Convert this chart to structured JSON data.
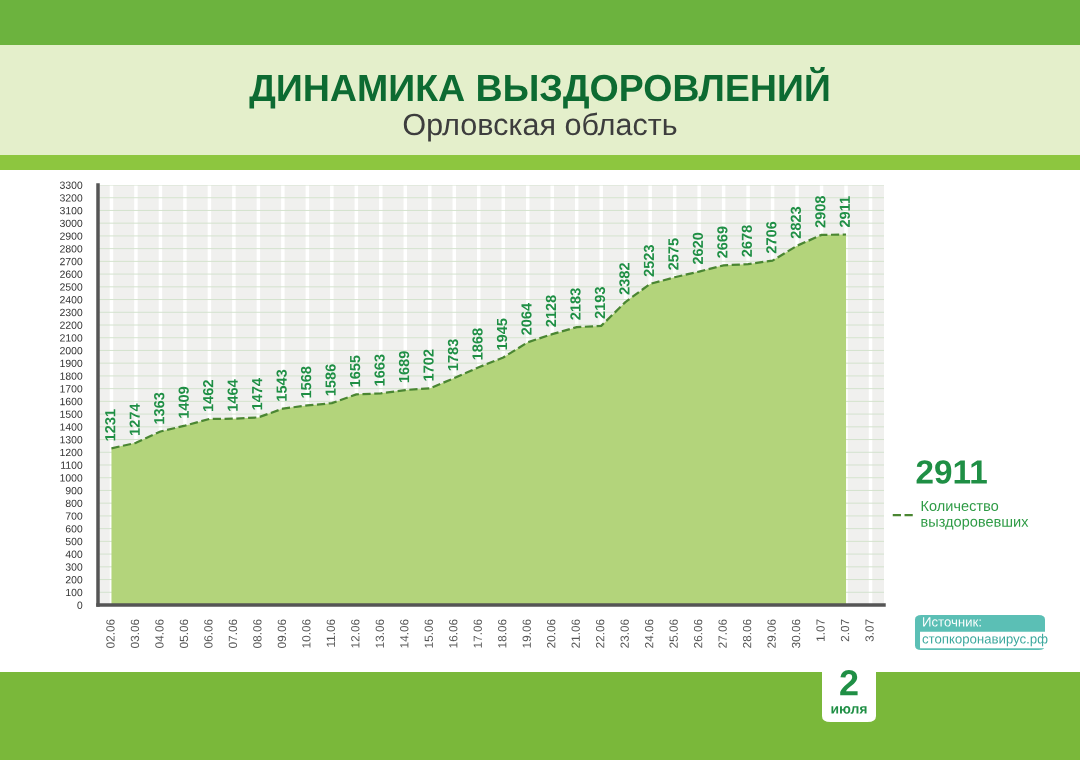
{
  "chart_data": {
    "type": "area",
    "title": "ДИНАМИКА ВЫЗДОРОВЛЕНИЙ",
    "subtitle": "Орловская область",
    "categories": [
      "02.06",
      "03.06",
      "04.06",
      "05.06",
      "06.06",
      "07.06",
      "08.06",
      "09.06",
      "10.06",
      "11.06",
      "12.06",
      "13.06",
      "14.06",
      "15.06",
      "16.06",
      "17.06",
      "18.06",
      "19.06",
      "20.06",
      "21.06",
      "22.06",
      "23.06",
      "24.06",
      "25.06",
      "26.06",
      "27.06",
      "28.06",
      "29.06",
      "30.06",
      "1.07",
      "2.07",
      "3.07"
    ],
    "series": [
      {
        "name": "Количество выздоровевших",
        "color": "#b3d47b",
        "values": [
          1231,
          1274,
          1363,
          1409,
          1462,
          1464,
          1474,
          1543,
          1568,
          1586,
          1655,
          1663,
          1689,
          1702,
          1783,
          1868,
          1945,
          2064,
          2128,
          2183,
          2193,
          2382,
          2523,
          2575,
          2620,
          2669,
          2678,
          2706,
          2823,
          2908,
          2911,
          null
        ]
      }
    ],
    "ylim": [
      0,
      3300
    ],
    "yticks": [
      0,
      100,
      200,
      300,
      400,
      500,
      600,
      700,
      800,
      900,
      1000,
      1100,
      1200,
      1300,
      1400,
      1500,
      1600,
      1700,
      1800,
      1900,
      2000,
      2100,
      2200,
      2300,
      2400,
      2500,
      2600,
      2700,
      2800,
      2900,
      3000,
      3100,
      3200,
      3300
    ],
    "grid": true,
    "legend": "right",
    "line_style": "dashed",
    "data_labels": true,
    "annotations": [
      "2911",
      "Источник:",
      "стопкоронавирус.рф",
      "2 июля"
    ]
  }
}
